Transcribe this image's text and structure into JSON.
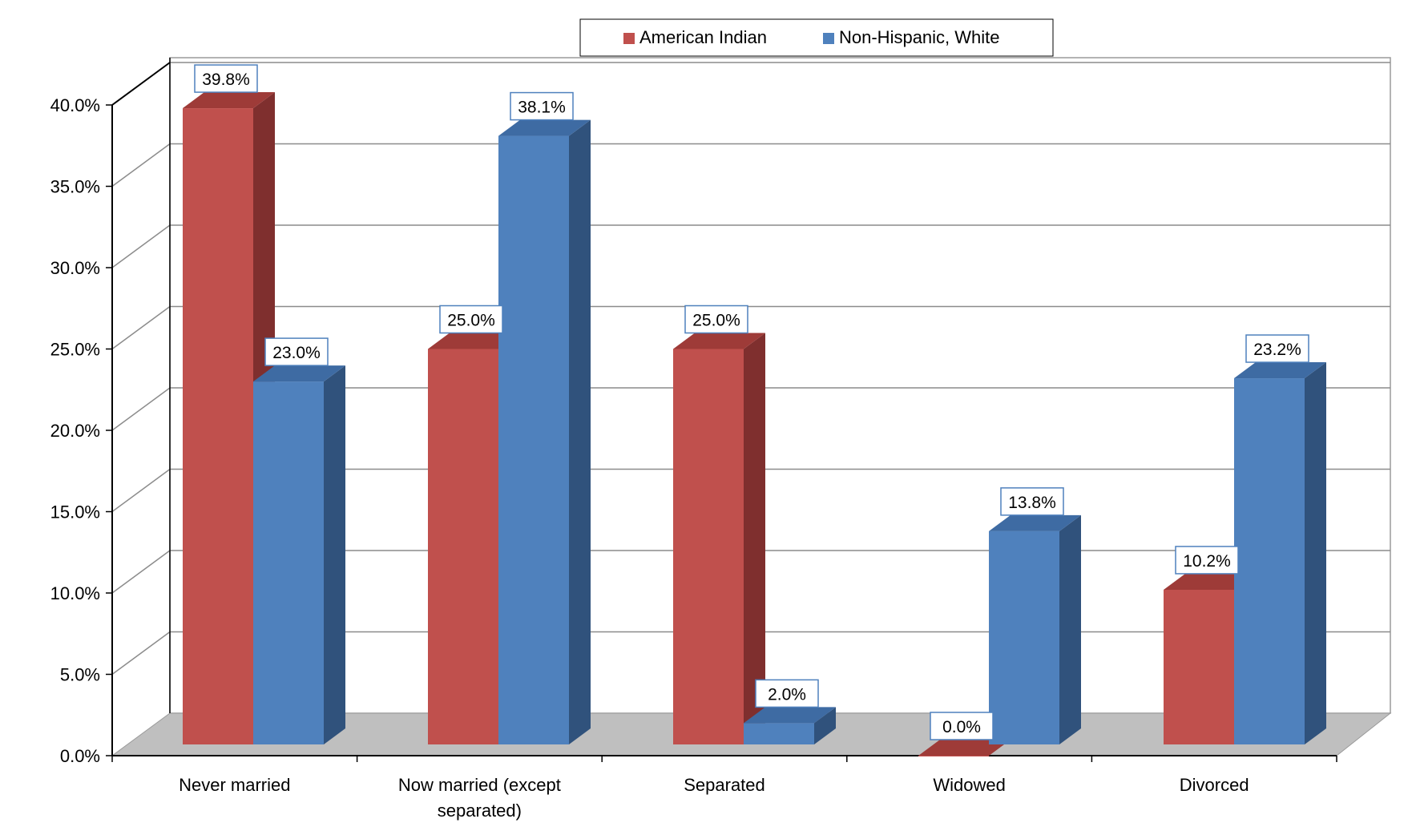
{
  "chart_data": {
    "type": "bar",
    "categories": [
      "Never married",
      "Now married (except separated)",
      "Separated",
      "Widowed",
      "Divorced"
    ],
    "category_lines": [
      [
        "Never married"
      ],
      [
        "Now married (except",
        "separated)"
      ],
      [
        "Separated"
      ],
      [
        "Widowed"
      ],
      [
        "Divorced"
      ]
    ],
    "series": [
      {
        "name": "American Indian",
        "values": [
          39.8,
          25.0,
          25.0,
          0.0,
          10.2
        ],
        "labels": [
          "39.8%",
          "25.0%",
          "25.0%",
          "0.0%",
          "10.2%"
        ],
        "color": "#C0504D",
        "side_color": "#7F2F2E",
        "top_color": "#9E3B38"
      },
      {
        "name": "Non-Hispanic, White",
        "values": [
          23.0,
          38.1,
          2.0,
          13.8,
          23.2
        ],
        "labels": [
          "23.0%",
          "38.1%",
          "2.0%",
          "13.8%",
          "23.2%"
        ],
        "color": "#4F81BD",
        "side_color": "#30527C",
        "top_color": "#3E6BA3"
      }
    ],
    "ylim": [
      0,
      40
    ],
    "yticks": [
      "0.0%",
      "5.0%",
      "10.0%",
      "15.0%",
      "20.0%",
      "25.0%",
      "30.0%",
      "35.0%",
      "40.0%"
    ],
    "grid": true,
    "legend_position": "top",
    "title": "",
    "xlabel": "",
    "ylabel": ""
  }
}
